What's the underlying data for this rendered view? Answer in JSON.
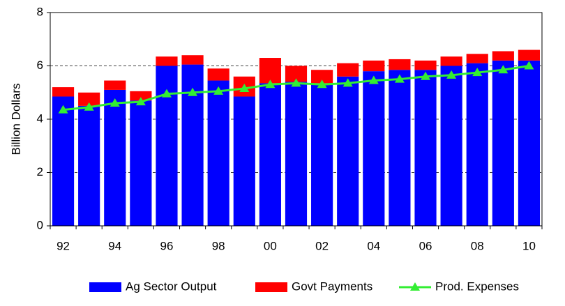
{
  "chart_data": {
    "type": "bar",
    "categories": [
      "92",
      null,
      "94",
      null,
      "96",
      null,
      "98",
      null,
      "00",
      null,
      "02",
      null,
      "04",
      null,
      "06",
      null,
      "08",
      null,
      "10"
    ],
    "y_label": "Billion Dollars",
    "series": [
      {
        "name": "Ag Sector Output",
        "color": "#0000ff",
        "values": [
          4.85,
          4.5,
          5.1,
          4.7,
          6.0,
          6.05,
          5.45,
          4.85,
          5.35,
          5.4,
          5.35,
          5.6,
          5.8,
          5.85,
          5.85,
          6.0,
          6.1,
          6.2,
          6.2
        ]
      },
      {
        "name": "Govt Payments",
        "color": "#ff0000",
        "values": [
          0.35,
          0.5,
          0.35,
          0.35,
          0.35,
          0.35,
          0.45,
          0.75,
          0.95,
          0.6,
          0.5,
          0.5,
          0.4,
          0.4,
          0.35,
          0.35,
          0.35,
          0.35,
          0.4
        ]
      },
      {
        "name": "Prod. Expenses",
        "color": "#33ee33",
        "type": "line",
        "values": [
          4.35,
          4.45,
          4.6,
          4.65,
          4.95,
          5.0,
          5.05,
          5.15,
          5.3,
          5.35,
          5.3,
          5.35,
          5.45,
          5.5,
          5.6,
          5.65,
          5.75,
          5.85,
          6.0
        ]
      }
    ],
    "ylim": [
      0,
      8
    ],
    "yticks": [
      0,
      2,
      4,
      6,
      8
    ],
    "grid": true,
    "legend": "bottom"
  }
}
